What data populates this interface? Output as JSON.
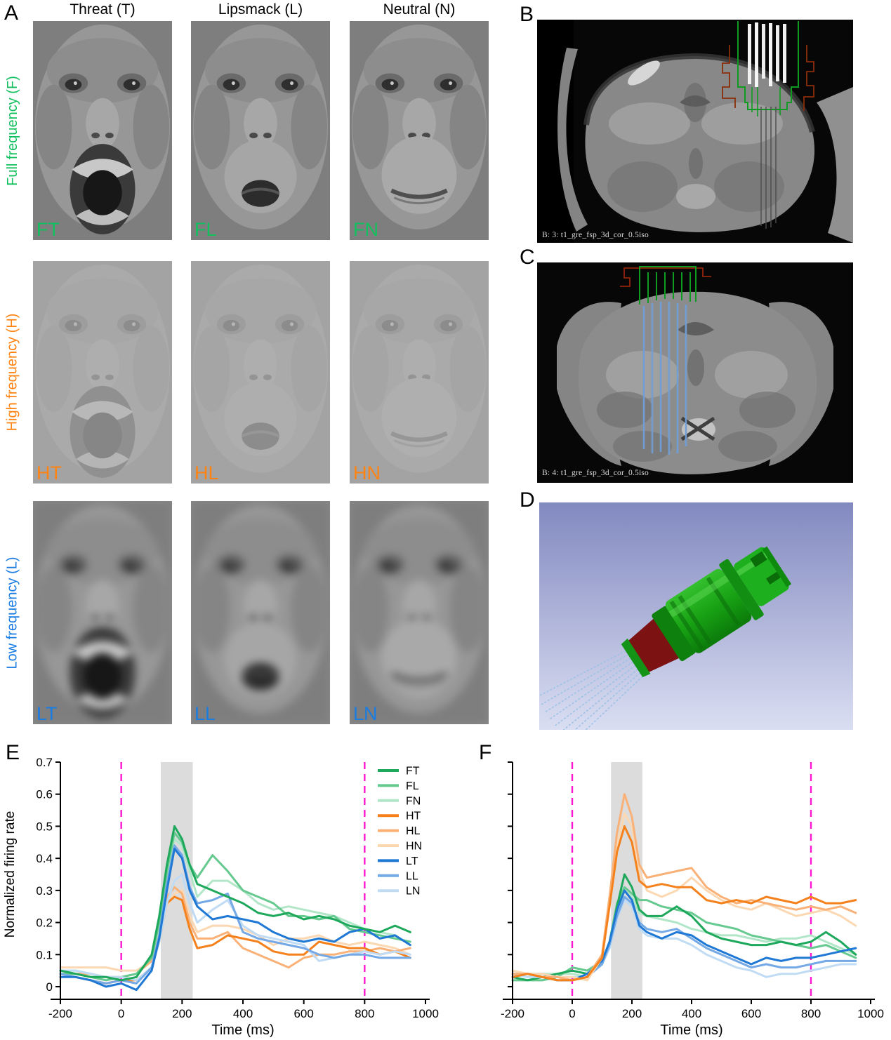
{
  "panels": {
    "a": {
      "label": "A",
      "columns": [
        {
          "key": "T",
          "title": "Threat (T)"
        },
        {
          "key": "L",
          "title": "Lipsmack (L)"
        },
        {
          "key": "N",
          "title": "Neutral (N)"
        }
      ],
      "rows": [
        {
          "key": "F",
          "title": "Full frequency (F)",
          "color": "#12c05e"
        },
        {
          "key": "H",
          "title": "High frequency (H)",
          "color": "#ff8312"
        },
        {
          "key": "L",
          "title": "Low frequency (L)",
          "color": "#1b7ce2"
        }
      ],
      "cells": [
        {
          "code": "FT",
          "color": "#12c05e"
        },
        {
          "code": "FL",
          "color": "#12c05e"
        },
        {
          "code": "FN",
          "color": "#12c05e"
        },
        {
          "code": "HT",
          "color": "#ff8312"
        },
        {
          "code": "HL",
          "color": "#ff8312"
        },
        {
          "code": "HN",
          "color": "#ff8312"
        },
        {
          "code": "LT",
          "color": "#1b7ce2"
        },
        {
          "code": "LL",
          "color": "#1b7ce2"
        },
        {
          "code": "LN",
          "color": "#1b7ce2"
        }
      ]
    },
    "b": {
      "label": "B",
      "caption": "B: 3: t1_gre_fsp_3d_cor_0.5iso"
    },
    "c": {
      "label": "C",
      "caption": "B: 4: t1_gre_fsp_3d_cor_0.5iso"
    },
    "d": {
      "label": "D"
    },
    "e": {
      "label": "E"
    },
    "f": {
      "label": "F"
    }
  },
  "chart_data": [
    {
      "panel": "E",
      "type": "line",
      "xlabel": "Time (ms)",
      "ylabel": "Normalized firing rate",
      "xlim": [
        -200,
        1000
      ],
      "ylim": [
        0,
        0.7
      ],
      "xticks": [
        -200,
        0,
        200,
        400,
        600,
        800,
        1000
      ],
      "yticks": [
        0,
        0.1,
        0.2,
        0.3,
        0.4,
        0.5,
        0.6,
        0.7
      ],
      "show_ytick_labels": true,
      "show_legend": true,
      "stim_band_ms": [
        130,
        235
      ],
      "band_color": "#dcdcdc",
      "event_lines_ms": [
        0,
        800
      ],
      "event_line_color": "#ff17d2",
      "x": [
        -200,
        -150,
        -100,
        -50,
        0,
        50,
        100,
        125,
        150,
        175,
        200,
        225,
        250,
        300,
        350,
        400,
        450,
        500,
        550,
        600,
        650,
        700,
        750,
        800,
        850,
        900,
        950
      ],
      "draw_order": [
        "HN",
        "HL",
        "HT",
        "FN",
        "FL",
        "LN",
        "LL",
        "LT",
        "FT"
      ],
      "series": [
        {
          "name": "FT",
          "color": "#1ea85c",
          "values": [
            0.05,
            0.04,
            0.03,
            0.03,
            0.02,
            0.03,
            0.1,
            0.22,
            0.38,
            0.5,
            0.46,
            0.38,
            0.32,
            0.3,
            0.28,
            0.26,
            0.23,
            0.22,
            0.23,
            0.21,
            0.22,
            0.21,
            0.19,
            0.18,
            0.17,
            0.19,
            0.17
          ]
        },
        {
          "name": "FL",
          "color": "#66c98f",
          "values": [
            0.04,
            0.04,
            0.03,
            0.02,
            0.03,
            0.04,
            0.09,
            0.2,
            0.36,
            0.48,
            0.45,
            0.38,
            0.34,
            0.41,
            0.36,
            0.3,
            0.28,
            0.26,
            0.22,
            0.22,
            0.21,
            0.22,
            0.18,
            0.17,
            0.16,
            0.15,
            0.14
          ]
        },
        {
          "name": "FN",
          "color": "#b2e6c9",
          "values": [
            0.05,
            0.05,
            0.04,
            0.03,
            0.03,
            0.04,
            0.09,
            0.19,
            0.35,
            0.46,
            0.44,
            0.36,
            0.28,
            0.33,
            0.33,
            0.3,
            0.26,
            0.24,
            0.25,
            0.24,
            0.23,
            0.22,
            0.2,
            0.18,
            0.17,
            0.16,
            0.13
          ]
        },
        {
          "name": "HT",
          "color": "#f5811c",
          "values": [
            0.04,
            0.03,
            0.02,
            0.01,
            0.02,
            0.02,
            0.06,
            0.14,
            0.26,
            0.28,
            0.27,
            0.18,
            0.12,
            0.13,
            0.16,
            0.15,
            0.14,
            0.11,
            0.1,
            0.1,
            0.14,
            0.13,
            0.12,
            0.12,
            0.1,
            0.11,
            0.09
          ]
        },
        {
          "name": "HL",
          "color": "#f9b177",
          "values": [
            0.05,
            0.04,
            0.04,
            0.03,
            0.03,
            0.04,
            0.08,
            0.16,
            0.28,
            0.31,
            0.29,
            0.2,
            0.15,
            0.15,
            0.17,
            0.12,
            0.1,
            0.08,
            0.06,
            0.09,
            0.1,
            0.1,
            0.11,
            0.11,
            0.12,
            0.11,
            0.12
          ]
        },
        {
          "name": "HN",
          "color": "#fbd8b2",
          "values": [
            0.06,
            0.06,
            0.06,
            0.06,
            0.05,
            0.05,
            0.08,
            0.15,
            0.25,
            0.29,
            0.3,
            0.22,
            0.17,
            0.19,
            0.19,
            0.18,
            0.16,
            0.13,
            0.15,
            0.15,
            0.16,
            0.14,
            0.13,
            0.14,
            0.13,
            0.12,
            0.1
          ]
        },
        {
          "name": "LT",
          "color": "#1f78d4",
          "values": [
            0.03,
            0.03,
            0.02,
            0.0,
            0.01,
            -0.01,
            0.05,
            0.15,
            0.3,
            0.43,
            0.4,
            0.3,
            0.25,
            0.21,
            0.22,
            0.21,
            0.2,
            0.17,
            0.15,
            0.14,
            0.15,
            0.14,
            0.17,
            0.18,
            0.15,
            0.16,
            0.13
          ]
        },
        {
          "name": "LL",
          "color": "#74a9e6",
          "values": [
            0.04,
            0.03,
            0.02,
            0.01,
            0.02,
            0.01,
            0.06,
            0.16,
            0.32,
            0.44,
            0.41,
            0.31,
            0.26,
            0.27,
            0.29,
            0.17,
            0.15,
            0.14,
            0.13,
            0.12,
            0.1,
            0.09,
            0.1,
            0.1,
            0.09,
            0.09,
            0.09
          ]
        },
        {
          "name": "LN",
          "color": "#c0dbf4",
          "values": [
            0.05,
            0.05,
            0.04,
            0.03,
            0.03,
            0.02,
            0.06,
            0.14,
            0.26,
            0.33,
            0.35,
            0.26,
            0.2,
            0.24,
            0.27,
            0.19,
            0.16,
            0.15,
            0.14,
            0.13,
            0.08,
            0.09,
            0.1,
            0.11,
            0.1,
            0.11,
            0.1
          ]
        }
      ]
    },
    {
      "panel": "F",
      "type": "line",
      "xlabel": "Time (ms)",
      "ylabel": "",
      "xlim": [
        -200,
        1000
      ],
      "ylim": [
        0,
        0.7
      ],
      "xticks": [
        -200,
        0,
        200,
        400,
        600,
        800,
        1000
      ],
      "yticks": [
        0,
        0.1,
        0.2,
        0.3,
        0.4,
        0.5,
        0.6,
        0.7
      ],
      "show_ytick_labels": false,
      "show_legend": false,
      "stim_band_ms": [
        130,
        235
      ],
      "band_color": "#dcdcdc",
      "event_lines_ms": [
        0,
        800
      ],
      "event_line_color": "#ff17d2",
      "x": [
        -200,
        -150,
        -100,
        -50,
        0,
        50,
        100,
        125,
        150,
        175,
        200,
        225,
        250,
        300,
        350,
        400,
        450,
        500,
        550,
        600,
        650,
        700,
        750,
        800,
        850,
        900,
        950
      ],
      "draw_order": [
        "FN",
        "FL",
        "FT",
        "LN",
        "LL",
        "LT",
        "HN",
        "HL",
        "HT"
      ],
      "series": [
        {
          "name": "FT",
          "color": "#1ea85c",
          "values": [
            0.03,
            0.02,
            0.03,
            0.04,
            0.05,
            0.04,
            0.07,
            0.13,
            0.25,
            0.35,
            0.31,
            0.24,
            0.22,
            0.22,
            0.25,
            0.22,
            0.17,
            0.15,
            0.14,
            0.13,
            0.13,
            0.14,
            0.13,
            0.14,
            0.17,
            0.14,
            0.1
          ]
        },
        {
          "name": "FL",
          "color": "#66c98f",
          "values": [
            0.02,
            0.02,
            0.02,
            0.03,
            0.06,
            0.05,
            0.08,
            0.14,
            0.26,
            0.31,
            0.29,
            0.27,
            0.27,
            0.25,
            0.24,
            0.23,
            0.2,
            0.19,
            0.18,
            0.16,
            0.15,
            0.14,
            0.13,
            0.12,
            0.13,
            0.11,
            0.09
          ]
        },
        {
          "name": "FN",
          "color": "#b2e6c9",
          "values": [
            0.04,
            0.03,
            0.04,
            0.04,
            0.04,
            0.03,
            0.07,
            0.12,
            0.22,
            0.3,
            0.28,
            0.23,
            0.22,
            0.21,
            0.2,
            0.18,
            0.17,
            0.16,
            0.16,
            0.15,
            0.14,
            0.15,
            0.15,
            0.16,
            0.14,
            0.12,
            0.1
          ]
        },
        {
          "name": "HT",
          "color": "#f5811c",
          "values": [
            0.03,
            0.04,
            0.03,
            0.02,
            0.02,
            0.03,
            0.09,
            0.25,
            0.42,
            0.5,
            0.45,
            0.33,
            0.31,
            0.32,
            0.31,
            0.31,
            0.27,
            0.26,
            0.27,
            0.26,
            0.28,
            0.27,
            0.26,
            0.28,
            0.26,
            0.26,
            0.27
          ]
        },
        {
          "name": "HL",
          "color": "#f9b177",
          "values": [
            0.04,
            0.04,
            0.03,
            0.03,
            0.02,
            0.03,
            0.1,
            0.28,
            0.48,
            0.6,
            0.53,
            0.38,
            0.34,
            0.35,
            0.36,
            0.37,
            0.31,
            0.28,
            0.26,
            0.27,
            0.26,
            0.25,
            0.24,
            0.25,
            0.24,
            0.25,
            0.23
          ]
        },
        {
          "name": "HN",
          "color": "#fbd8b2",
          "values": [
            0.05,
            0.04,
            0.04,
            0.03,
            0.03,
            0.02,
            0.09,
            0.26,
            0.44,
            0.54,
            0.5,
            0.36,
            0.3,
            0.28,
            0.3,
            0.34,
            0.3,
            0.27,
            0.25,
            0.24,
            0.26,
            0.24,
            0.22,
            0.23,
            0.24,
            0.22,
            0.19
          ]
        },
        {
          "name": "LT",
          "color": "#1f78d4",
          "values": [
            0.03,
            0.04,
            0.03,
            0.02,
            0.02,
            0.04,
            0.08,
            0.14,
            0.24,
            0.3,
            0.27,
            0.19,
            0.17,
            0.15,
            0.17,
            0.16,
            0.13,
            0.11,
            0.09,
            0.07,
            0.09,
            0.08,
            0.09,
            0.09,
            0.1,
            0.11,
            0.12
          ]
        },
        {
          "name": "LL",
          "color": "#74a9e6",
          "values": [
            0.04,
            0.04,
            0.04,
            0.03,
            0.02,
            0.03,
            0.07,
            0.13,
            0.22,
            0.28,
            0.26,
            0.2,
            0.18,
            0.17,
            0.18,
            0.15,
            0.12,
            0.1,
            0.08,
            0.06,
            0.07,
            0.06,
            0.06,
            0.07,
            0.08,
            0.08,
            0.08
          ]
        },
        {
          "name": "LN",
          "color": "#c0dbf4",
          "values": [
            0.04,
            0.03,
            0.03,
            0.03,
            0.03,
            0.03,
            0.07,
            0.12,
            0.21,
            0.27,
            0.25,
            0.18,
            0.16,
            0.15,
            0.15,
            0.13,
            0.1,
            0.08,
            0.06,
            0.05,
            0.03,
            0.04,
            0.04,
            0.05,
            0.06,
            0.07,
            0.07
          ]
        }
      ]
    }
  ]
}
